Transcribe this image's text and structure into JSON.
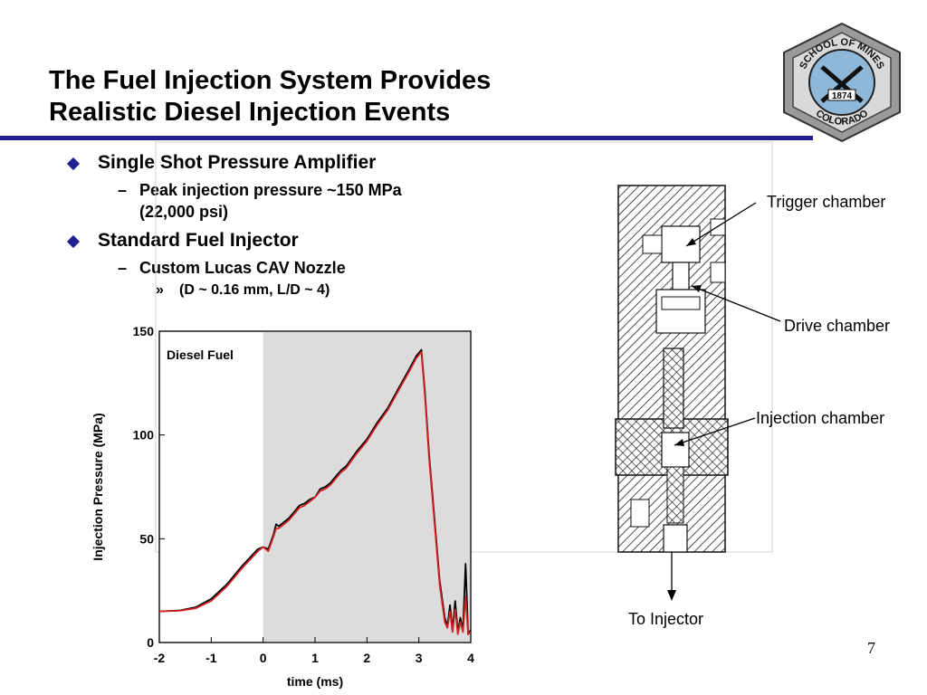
{
  "slide": {
    "title_line1": "The Fuel Injection System Provides",
    "title_line2": "Realistic Diesel Injection Events",
    "page_number": "7",
    "accent_color": "#1f1f8f"
  },
  "logo": {
    "top_text": "SCHOOL OF MINES",
    "bottom_text": "COLORADO",
    "year": "1874",
    "badge_fill": "#8fb8d8"
  },
  "bullets": [
    {
      "text": "Single Shot Pressure Amplifier",
      "sub": [
        {
          "text": "Peak injection pressure ~150 MPa",
          "text2": "(22,000 psi)"
        }
      ]
    },
    {
      "text": "Standard Fuel Injector",
      "sub": [
        {
          "text": "Custom Lucas CAV Nozzle",
          "subsub": "(D ~ 0.16 mm, L/D ~ 4)"
        }
      ]
    }
  ],
  "diagram": {
    "labels": {
      "trigger": "Trigger chamber",
      "drive": "Drive chamber",
      "injection": "Injection chamber",
      "outlet": "To Injector"
    }
  },
  "chart_data": {
    "type": "line",
    "annotation": "Diesel Fuel",
    "xlabel": "time (ms)",
    "ylabel": "Injection Pressure (MPa)",
    "xlim": [
      -2,
      4
    ],
    "ylim": [
      0,
      150
    ],
    "xticks": [
      -2,
      -1,
      0,
      1,
      2,
      3,
      4
    ],
    "yticks": [
      0,
      50,
      100,
      150
    ],
    "shaded_region": [
      0,
      4
    ],
    "series": [
      {
        "color": "#000000",
        "x": [
          -2,
          -1.6,
          -1.3,
          -1,
          -0.7,
          -0.4,
          -0.1,
          0,
          0.1,
          0.2,
          0.25,
          0.3,
          0.4,
          0.5,
          0.6,
          0.7,
          0.8,
          0.9,
          1.0,
          1.1,
          1.2,
          1.3,
          1.4,
          1.5,
          1.6,
          1.8,
          2.0,
          2.2,
          2.4,
          2.6,
          2.8,
          2.95,
          3.05,
          3.12,
          3.2,
          3.3,
          3.4,
          3.5,
          3.55,
          3.6,
          3.65,
          3.7,
          3.75,
          3.8,
          3.85,
          3.9,
          3.95,
          4.0
        ],
        "y": [
          15,
          15.5,
          17,
          21,
          28,
          37,
          45,
          46,
          45,
          52,
          57,
          56,
          58,
          60,
          63,
          66,
          67,
          69,
          70,
          74,
          75,
          77,
          80,
          83,
          85,
          92,
          98,
          106,
          113,
          122,
          131,
          138,
          141,
          120,
          90,
          60,
          30,
          12,
          8,
          18,
          6,
          20,
          5,
          12,
          6,
          38,
          4,
          6
        ]
      },
      {
        "color": "#d42020",
        "x": [
          -2,
          -1.6,
          -1.3,
          -1,
          -0.7,
          -0.4,
          -0.1,
          0,
          0.1,
          0.2,
          0.25,
          0.3,
          0.4,
          0.5,
          0.6,
          0.7,
          0.8,
          0.9,
          1.0,
          1.1,
          1.2,
          1.3,
          1.4,
          1.5,
          1.6,
          1.8,
          2.0,
          2.2,
          2.4,
          2.6,
          2.8,
          2.95,
          3.05,
          3.12,
          3.2,
          3.3,
          3.4,
          3.5,
          3.55,
          3.6,
          3.65,
          3.7,
          3.75,
          3.8,
          3.85,
          3.9,
          3.95,
          4.0
        ],
        "y": [
          15,
          15.3,
          16.5,
          20,
          27,
          36,
          44,
          46,
          44,
          51,
          55,
          55,
          57,
          59,
          62,
          65,
          66,
          68,
          70,
          73,
          74,
          76,
          79,
          82,
          84,
          91,
          97,
          105,
          112,
          121,
          130,
          137,
          140,
          118,
          88,
          58,
          28,
          10,
          7,
          15,
          5,
          16,
          4,
          10,
          5,
          22,
          4,
          5
        ]
      }
    ]
  }
}
